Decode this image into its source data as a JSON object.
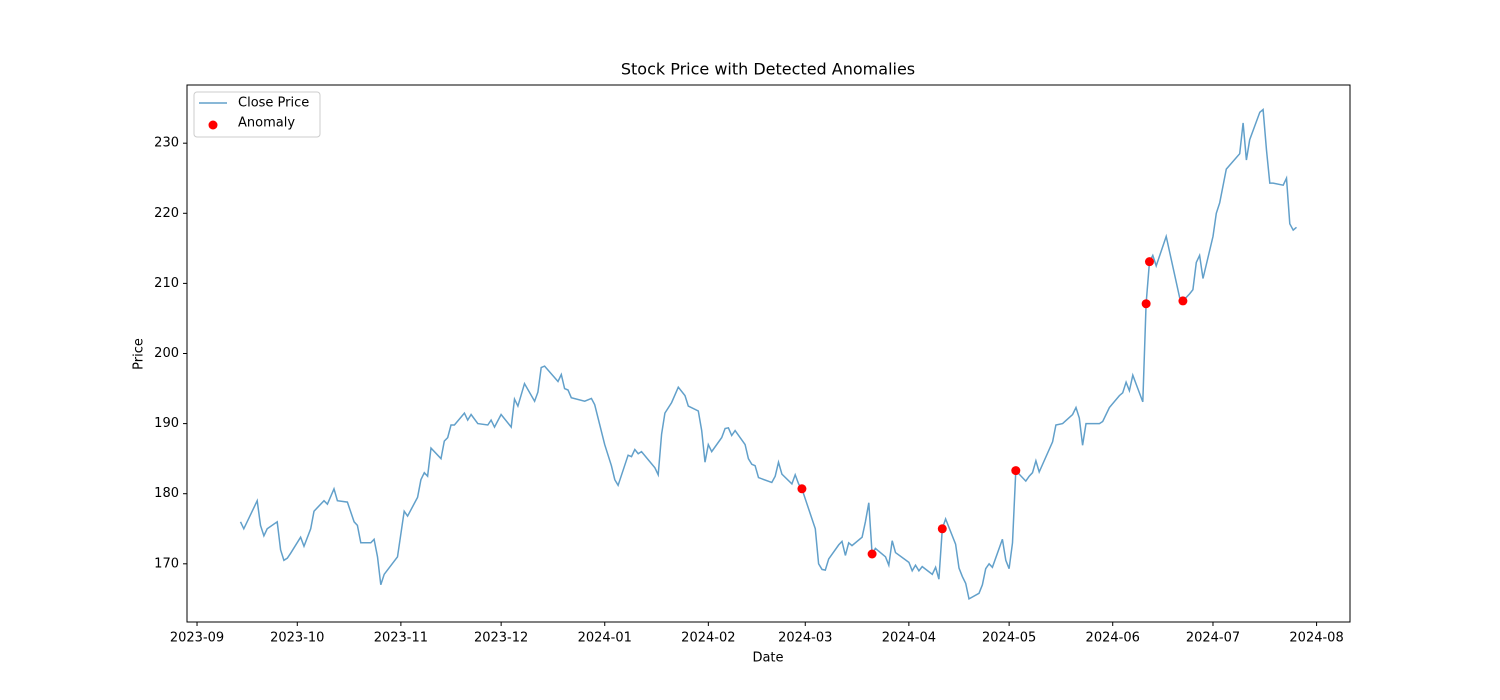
{
  "chart_data": {
    "type": "line",
    "title": "Stock Price with Detected Anomalies",
    "xlabel": "Date",
    "ylabel": "Price",
    "xlim": [
      -3,
      345
    ],
    "ylim": [
      161.7,
      238.3
    ],
    "xticks": [
      {
        "value": 0,
        "label": "2023-09"
      },
      {
        "value": 30,
        "label": "2023-10"
      },
      {
        "value": 61,
        "label": "2023-11"
      },
      {
        "value": 91,
        "label": "2023-12"
      },
      {
        "value": 122,
        "label": "2024-01"
      },
      {
        "value": 153,
        "label": "2024-02"
      },
      {
        "value": 182,
        "label": "2024-03"
      },
      {
        "value": 213,
        "label": "2024-04"
      },
      {
        "value": 243,
        "label": "2024-05"
      },
      {
        "value": 274,
        "label": "2024-06"
      },
      {
        "value": 304,
        "label": "2024-07"
      },
      {
        "value": 335,
        "label": "2024-08"
      }
    ],
    "yticks": [
      170,
      180,
      190,
      200,
      210,
      220,
      230
    ],
    "legend": "upper left",
    "grid": false,
    "series": [
      {
        "name": "Close Price",
        "type": "line",
        "color": "#1f77b4",
        "alpha": 0.7,
        "x": [
          13,
          14,
          18,
          19,
          20,
          21,
          24,
          25,
          26,
          27,
          28,
          31,
          32,
          34,
          35,
          38,
          39,
          41,
          42,
          45,
          47,
          48,
          49,
          52,
          53,
          54,
          55,
          56,
          60,
          62,
          63,
          66,
          67,
          68,
          69,
          70,
          73,
          74,
          75,
          76,
          77,
          80,
          81,
          82,
          84,
          87,
          88,
          89,
          91,
          94,
          95,
          96,
          98,
          101,
          102,
          103,
          104,
          108,
          109,
          110,
          111,
          112,
          116,
          118,
          119,
          122,
          124,
          125,
          126,
          129,
          130,
          131,
          132,
          133,
          137,
          138,
          139,
          140,
          142,
          144,
          146,
          147,
          150,
          151,
          152,
          153,
          154,
          157,
          158,
          159,
          160,
          161,
          164,
          165,
          166,
          167,
          168,
          172,
          173,
          174,
          175,
          178,
          179,
          180,
          181,
          185,
          186,
          187,
          188,
          189,
          192,
          193,
          194,
          195,
          196,
          199,
          200,
          201,
          202,
          203,
          206,
          207,
          208,
          209,
          213,
          214,
          215,
          216,
          217,
          220,
          221,
          222,
          223,
          224,
          227,
          228,
          229,
          230,
          231,
          234,
          235,
          236,
          237,
          238,
          241,
          242,
          243,
          244,
          245,
          248,
          249,
          250,
          251,
          252,
          256,
          257,
          259,
          262,
          263,
          264,
          265,
          266,
          270,
          271,
          273,
          276,
          277,
          278,
          279,
          280,
          283,
          284,
          285,
          286,
          287,
          290,
          294,
          295,
          297,
          298,
          299,
          300,
          301,
          304,
          305,
          306,
          308,
          312,
          313,
          314,
          315,
          318,
          319,
          320,
          321,
          322,
          325,
          326,
          327,
          328,
          329
        ],
        "values": [
          176,
          175,
          179,
          175.5,
          174,
          175,
          176,
          172,
          170.5,
          170.8,
          171.5,
          173.8,
          172.5,
          175,
          177.5,
          179,
          178.5,
          180.7,
          179,
          178.8,
          176,
          175.5,
          173,
          173,
          173.5,
          171,
          167,
          168.5,
          171,
          177.5,
          176.8,
          179.5,
          182,
          183,
          182.5,
          186.5,
          185,
          187.5,
          188,
          189.8,
          189.8,
          191.5,
          190.5,
          191.3,
          190,
          189.8,
          190.5,
          189.5,
          191.3,
          189.5,
          193.5,
          192.5,
          195.7,
          193.2,
          194.5,
          198,
          198.2,
          196,
          197,
          195,
          194.8,
          193.7,
          193.2,
          193.6,
          192.7,
          187,
          184,
          182,
          181.2,
          185.5,
          185.3,
          186.3,
          185.7,
          186,
          183.7,
          182.7,
          188.5,
          191.5,
          193,
          195.2,
          194,
          192.5,
          191.8,
          189,
          184.5,
          187,
          186,
          188,
          189.3,
          189.4,
          188.3,
          189,
          187,
          185,
          184.2,
          184,
          182.3,
          181.6,
          182.5,
          184.5,
          182.8,
          181.4,
          182.7,
          181.4,
          180.7,
          175,
          170,
          169.2,
          169.1,
          170.7,
          172.7,
          173.2,
          171.2,
          173,
          172.6,
          173.8,
          176,
          178.7,
          171.4,
          172.2,
          171,
          169.8,
          173.3,
          171.6,
          170.2,
          169,
          169.8,
          169,
          169.6,
          168.5,
          169.5,
          167.8,
          175,
          176.4,
          172.8,
          169.4,
          168.2,
          167.2,
          165,
          165.8,
          167,
          169.3,
          170,
          169.5,
          173.5,
          170.5,
          169.3,
          173,
          183.3,
          181.8,
          182.5,
          183,
          184.7,
          183.1,
          187.4,
          189.8,
          190,
          191.3,
          192.3,
          190.8,
          186.9,
          190,
          190,
          190.3,
          192.3,
          194,
          194.4,
          195.9,
          194.7,
          196.9,
          193.1,
          207.1,
          213.1,
          214,
          212.5,
          216.7,
          208,
          207.5,
          208.5,
          209.1,
          213,
          214,
          210.7,
          216.7,
          220,
          221.5,
          226.3,
          228.5,
          232.9,
          227.6,
          230.5,
          234.4,
          234.8,
          229,
          224.3,
          224.3,
          224,
          225,
          218.5,
          217.6,
          218
        ]
      },
      {
        "name": "Anomaly",
        "type": "scatter",
        "color": "#ff0000",
        "x": [
          181,
          202,
          223,
          245,
          284,
          285,
          295
        ],
        "values": [
          180.7,
          171.4,
          175,
          183.3,
          207.1,
          213.1,
          207.5
        ]
      }
    ]
  }
}
